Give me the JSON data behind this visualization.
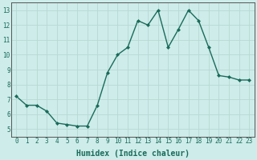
{
  "x": [
    0,
    1,
    2,
    3,
    4,
    5,
    6,
    7,
    8,
    9,
    10,
    11,
    12,
    13,
    14,
    15,
    16,
    17,
    18,
    19,
    20,
    21,
    22,
    23
  ],
  "y": [
    7.2,
    6.6,
    6.6,
    6.2,
    5.4,
    5.3,
    5.2,
    5.2,
    6.6,
    8.8,
    10.0,
    10.5,
    12.3,
    12.0,
    13.0,
    10.5,
    11.7,
    13.0,
    12.3,
    10.5,
    8.6,
    8.5,
    8.3,
    8.3
  ],
  "line_color": "#1a6b5a",
  "marker": "D",
  "marker_size": 2.0,
  "line_width": 1.0,
  "xlabel": "Humidex (Indice chaleur)",
  "xlim": [
    -0.5,
    23.5
  ],
  "ylim": [
    4.5,
    13.5
  ],
  "yticks": [
    5,
    6,
    7,
    8,
    9,
    10,
    11,
    12,
    13
  ],
  "xticks": [
    0,
    1,
    2,
    3,
    4,
    5,
    6,
    7,
    8,
    9,
    10,
    11,
    12,
    13,
    14,
    15,
    16,
    17,
    18,
    19,
    20,
    21,
    22,
    23
  ],
  "bg_color": "#cdecea",
  "grid_color": "#b8d8d4",
  "tick_label_fontsize": 5.5,
  "xlabel_fontsize": 7.0,
  "xlabel_fontfamily": "monospace",
  "xlabel_fontweight": "bold"
}
